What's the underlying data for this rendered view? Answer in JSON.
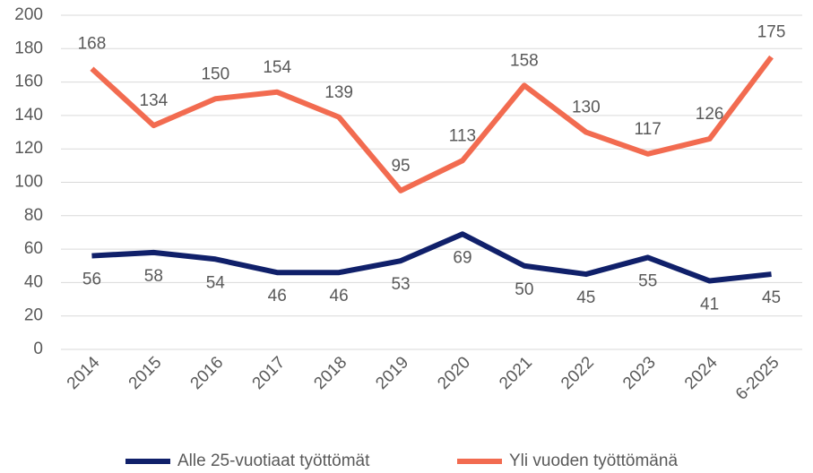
{
  "chart_data": {
    "type": "line",
    "categories": [
      "2014",
      "2015",
      "2016",
      "2017",
      "2018",
      "2019",
      "2020",
      "2021",
      "2022",
      "2023",
      "2024",
      "6-2025"
    ],
    "series": [
      {
        "name": "Alle 25-vuotiaat työttömät",
        "color": "#10206a",
        "values": [
          56,
          58,
          54,
          46,
          46,
          53,
          69,
          50,
          45,
          55,
          41,
          45
        ]
      },
      {
        "name": "Yli vuoden työttömänä",
        "color": "#f26b50",
        "values": [
          168,
          134,
          150,
          154,
          139,
          95,
          113,
          158,
          130,
          117,
          126,
          175
        ]
      }
    ],
    "ylim": [
      0,
      200
    ],
    "yticks": [
      0,
      20,
      40,
      60,
      80,
      100,
      120,
      140,
      160,
      180,
      200
    ],
    "grid": true,
    "legend": "bottom"
  }
}
